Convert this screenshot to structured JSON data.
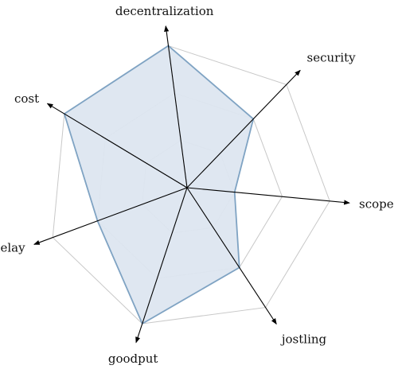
{
  "chart_data": {
    "type": "radar",
    "axes": [
      "decentralization",
      "security",
      "scope",
      "jostling",
      "goodput",
      "delay",
      "cost"
    ],
    "levels": 3,
    "max_value": 3,
    "series": [
      {
        "values": [
          3,
          2,
          1,
          2,
          3,
          2,
          3
        ]
      }
    ],
    "colors": {
      "fill": "#dde6f0",
      "stroke": "#7fa3c3",
      "grid": "#c8c8c8",
      "axis": "#000000"
    }
  }
}
